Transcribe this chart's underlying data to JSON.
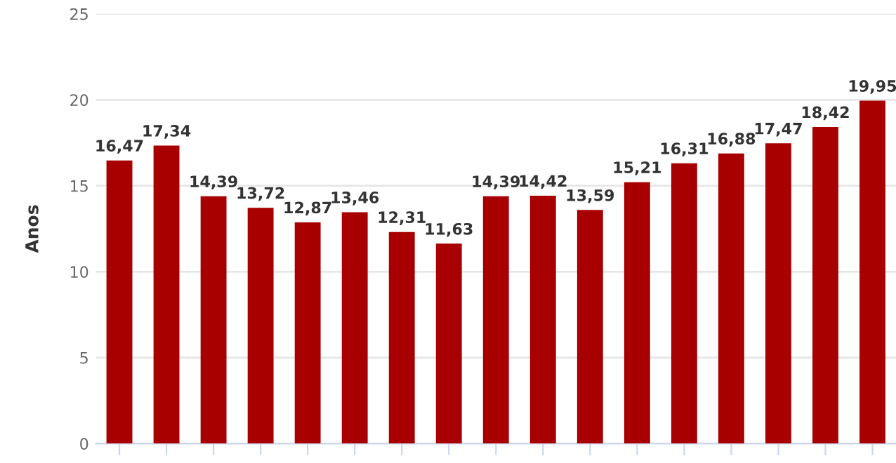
{
  "chart_data": {
    "type": "bar",
    "ylabel": "Anos",
    "categories": [
      null,
      null,
      null,
      null,
      null,
      null,
      null,
      null,
      null,
      null,
      null,
      null,
      null,
      null,
      null,
      null,
      null
    ],
    "values": [
      16.47,
      17.34,
      14.39,
      13.72,
      12.87,
      13.46,
      12.31,
      11.63,
      14.39,
      14.42,
      13.59,
      15.21,
      16.31,
      16.88,
      17.47,
      18.42,
      19.95
    ],
    "value_labels": [
      "16,47",
      "17,34",
      "14,39",
      "13,72",
      "12,87",
      "13,46",
      "12,31",
      "11,63",
      "14,39",
      "14,42",
      "13,59",
      "15,21",
      "16,31",
      "16,88",
      "17,47",
      "18,42",
      "19,95"
    ],
    "color": "#a80000",
    "ylim": [
      0,
      25
    ],
    "yticks": [
      0,
      5,
      10,
      15,
      20,
      25
    ],
    "grid": "y"
  }
}
